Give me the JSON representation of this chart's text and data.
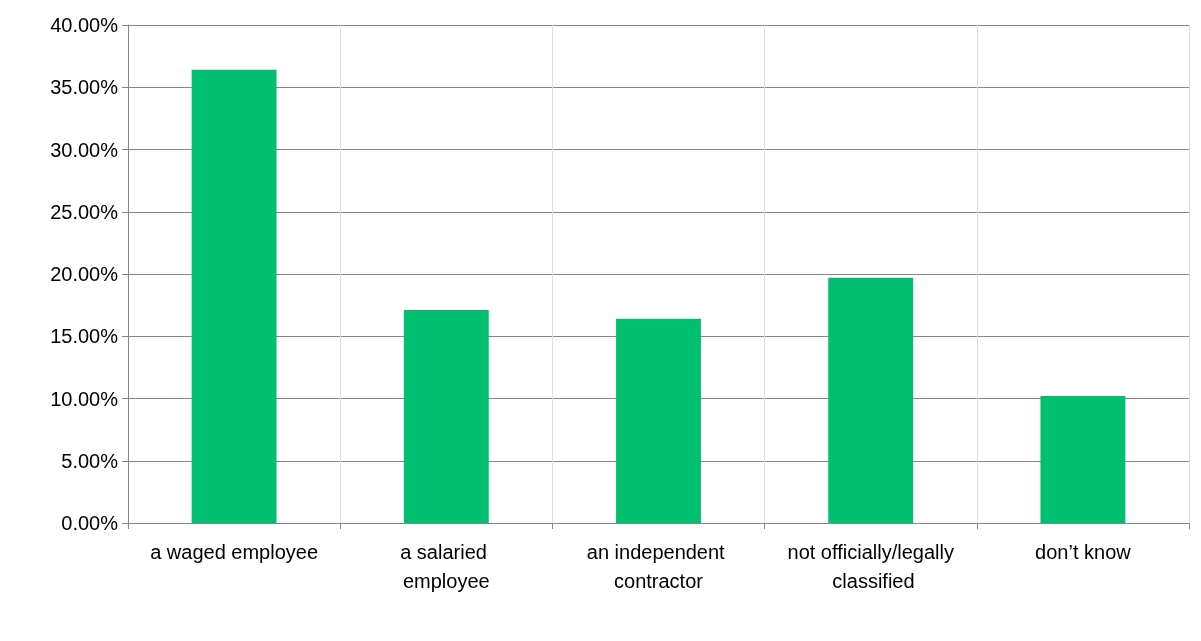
{
  "chart_data": {
    "type": "bar",
    "categories": [
      "a waged employee",
      "a salaried employee",
      "an independent contractor",
      "not officially/legally classified",
      "don’t know"
    ],
    "values": [
      36.4,
      17.1,
      16.4,
      19.7,
      10.2
    ],
    "color": "#00bf6f",
    "ylim": [
      0,
      40
    ],
    "yticks": [
      {
        "value": 0,
        "label": "0.00%"
      },
      {
        "value": 5,
        "label": "5.00%"
      },
      {
        "value": 10,
        "label": "10.00%"
      },
      {
        "value": 15,
        "label": "15.00%"
      },
      {
        "value": 20,
        "label": "20.00%"
      },
      {
        "value": 25,
        "label": "25.00%"
      },
      {
        "value": 30,
        "label": "30.00%"
      },
      {
        "value": 35,
        "label": "35.00%"
      },
      {
        "value": 40,
        "label": "40.00%"
      }
    ],
    "grid": true
  }
}
